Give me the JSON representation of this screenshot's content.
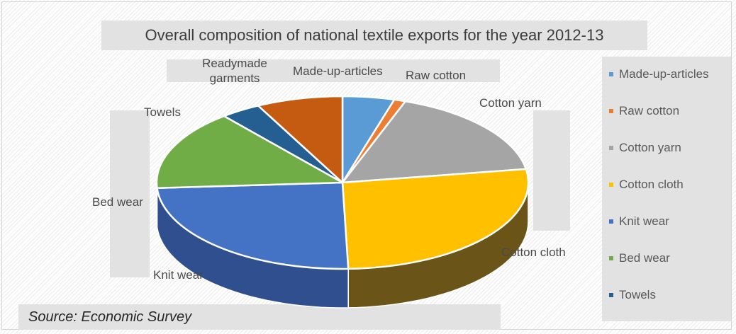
{
  "chart_data": {
    "type": "pie",
    "title": "Overall composition of national textile exports for the year 2012-13",
    "slices": [
      {
        "label": "Made-up-articles",
        "value": 4.5,
        "color": "#5b9bd5",
        "dark": "#2d5c8f"
      },
      {
        "label": "Raw cotton",
        "value": 1.0,
        "color": "#ed7d31",
        "dark": "#9e4a14"
      },
      {
        "label": "Cotton yarn",
        "value": 17.0,
        "color": "#a5a5a5",
        "dark": "#6a6a6a"
      },
      {
        "label": "Cotton cloth",
        "value": 27.0,
        "color": "#ffc000",
        "dark": "#6b5417"
      },
      {
        "label": "Knit wear",
        "value": 24.5,
        "color": "#4472c4",
        "dark": "#2f4f8f"
      },
      {
        "label": "Bed wear",
        "value": 15.0,
        "color": "#70ad47",
        "dark": "#4a7a2c"
      },
      {
        "label": "Towels",
        "value": 3.5,
        "color": "#255e91",
        "dark": "#1a3f63"
      },
      {
        "label": "Readymade garments",
        "value": 7.5,
        "color": "#c55a11",
        "dark": "#833a0a"
      }
    ],
    "legend_position": "right",
    "legend": [
      "Made-up-articles",
      "Raw cotton",
      "Cotton yarn",
      "Cotton cloth",
      "Knit wear",
      "Bed wear",
      "Towels"
    ],
    "source": "Source: Economic Survey"
  },
  "labels": {
    "readymade_line1": "Readymade",
    "readymade_line2": "garments"
  }
}
